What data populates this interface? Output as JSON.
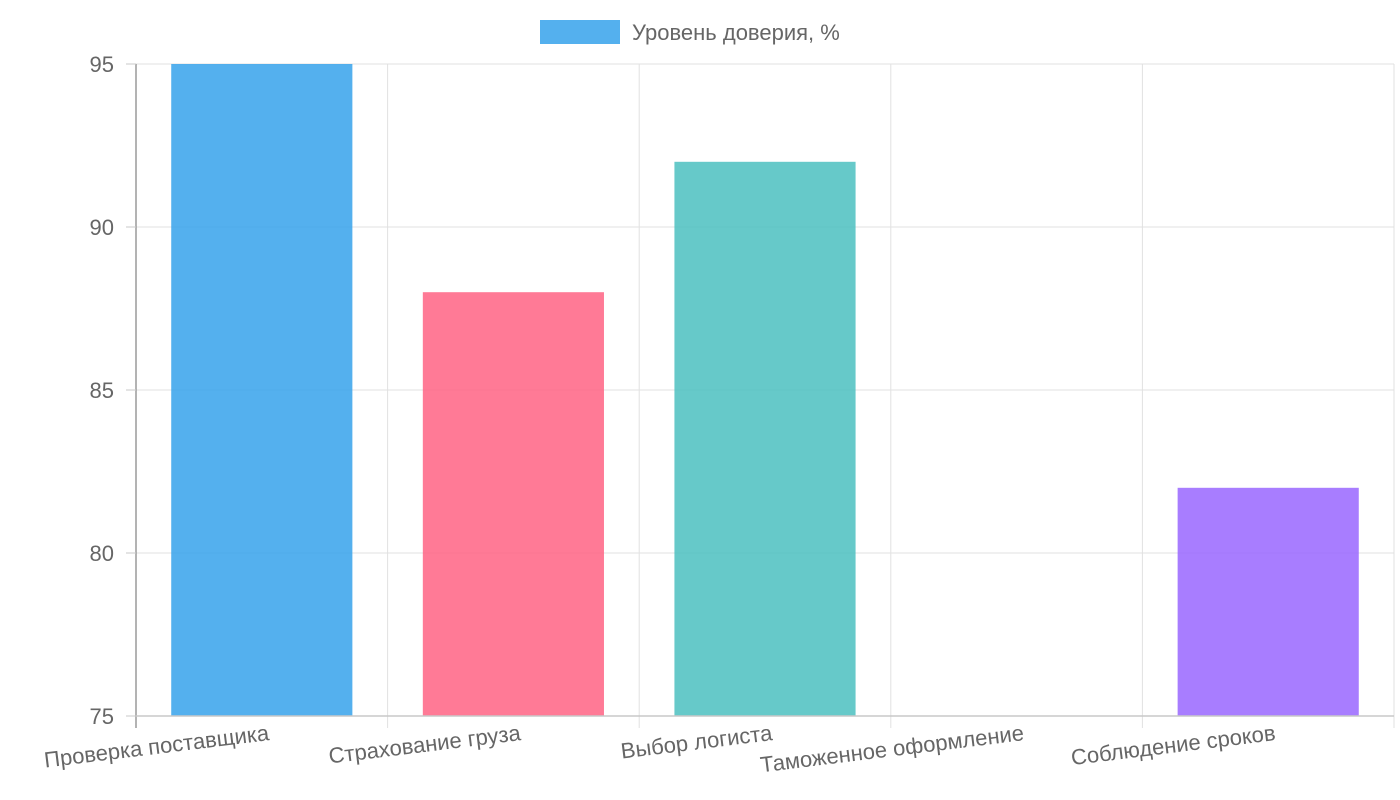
{
  "chart_data": {
    "type": "bar",
    "categories": [
      "Проверка поставщика",
      "Страхование груза",
      "Выбор логиста",
      "Таможенное оформление",
      "Соблюдение сроков"
    ],
    "series": [
      {
        "name": "Уровень доверия, %",
        "values": [
          95,
          88,
          92,
          75,
          82
        ]
      }
    ],
    "bar_colors": [
      "#36a2eb",
      "#ff6384",
      "#4bc0c0",
      "#ff9f40",
      "#9966ff"
    ],
    "legend_color": "#36a2eb",
    "yticks": [
      "95",
      "90",
      "85",
      "80",
      "75"
    ],
    "ylim": [
      75,
      95
    ],
    "grid": true,
    "legend_position": "top"
  }
}
